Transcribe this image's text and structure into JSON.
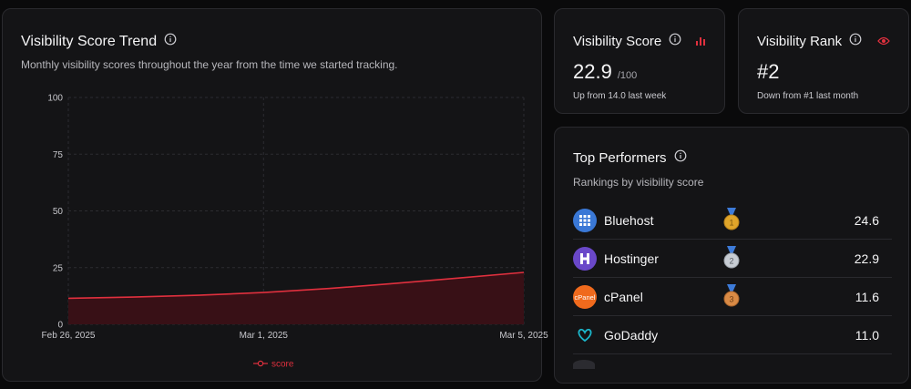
{
  "trend": {
    "title": "Visibility Score Trend",
    "subtitle": "Monthly visibility scores throughout the year from the time we started tracking."
  },
  "score_card": {
    "title": "Visibility Score",
    "value": "22.9",
    "unit": "/100",
    "subtitle": "Up from 14.0 last week",
    "icon": "bar-chart-icon"
  },
  "rank_card": {
    "title": "Visibility Rank",
    "value": "#2",
    "subtitle": "Down from #1 last month",
    "icon": "eye-icon"
  },
  "performers": {
    "title": "Top Performers",
    "subtitle": "Rankings by visibility score",
    "items": [
      {
        "name": "Bluehost",
        "score": "24.6",
        "medal": "1",
        "logo_color": "#3a78d6"
      },
      {
        "name": "Hostinger",
        "score": "22.9",
        "medal": "2",
        "logo_color": "#6a48c9"
      },
      {
        "name": "cPanel",
        "score": "11.6",
        "medal": "3",
        "logo_color": "#f06a1d"
      },
      {
        "name": "GoDaddy",
        "score": "11.0",
        "medal": "",
        "logo_color": "#1bb5c9"
      }
    ]
  },
  "colors": {
    "accent": "#e0303e",
    "area_fill": "#3a1016",
    "card_bg": "#141416",
    "border": "#2a2a2e"
  },
  "chart_data": {
    "type": "area",
    "x": [
      "Feb 26, 2025",
      "Feb 27, 2025",
      "Feb 28, 2025",
      "Mar 1, 2025",
      "Mar 2, 2025",
      "Mar 3, 2025",
      "Mar 4, 2025",
      "Mar 5, 2025"
    ],
    "xticks": [
      "Feb 26, 2025",
      "Mar 1, 2025",
      "Mar 5, 2025"
    ],
    "series": [
      {
        "name": "score",
        "values": [
          11.5,
          12.0,
          12.8,
          14.0,
          15.8,
          18.0,
          20.4,
          22.9
        ]
      }
    ],
    "ylim": [
      0,
      100
    ],
    "yticks": [
      0,
      25,
      50,
      75,
      100
    ],
    "grid": "dashed",
    "legend": "bottom-center"
  }
}
